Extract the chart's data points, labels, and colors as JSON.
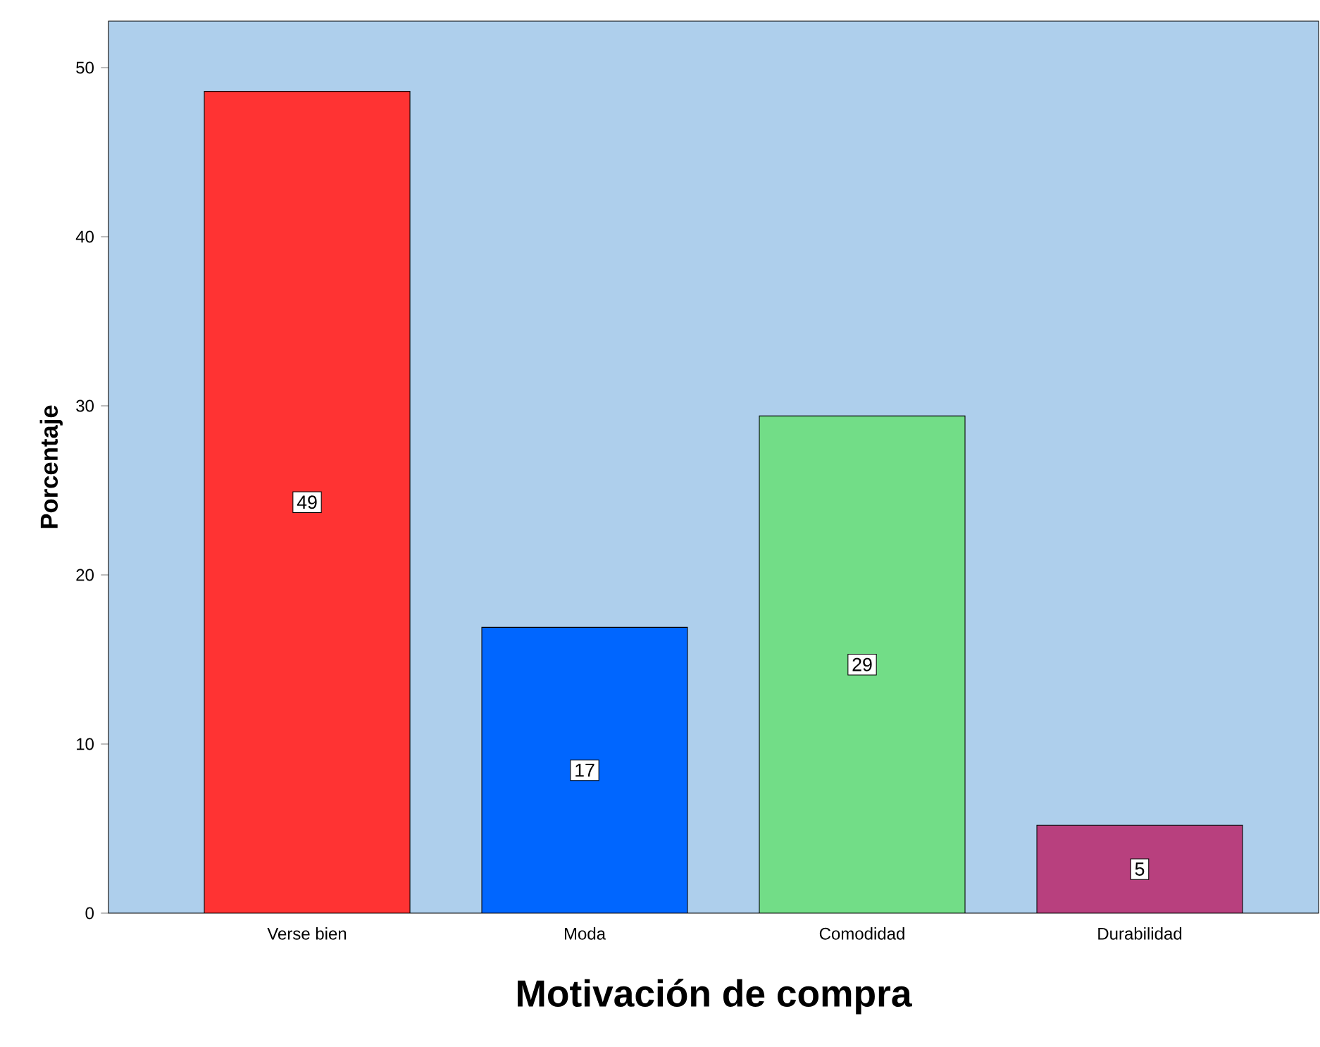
{
  "chart_data": {
    "type": "bar",
    "xlabel": "Motivación de compra",
    "ylabel": "Porcentaje",
    "categories": [
      "Verse bien",
      "Moda",
      "Comodidad",
      "Durabilidad"
    ],
    "values": [
      48.6,
      16.9,
      29.4,
      5.2
    ],
    "value_labels": [
      "49",
      "17",
      "29",
      "5"
    ],
    "colors": [
      "#ff3333",
      "#0066ff",
      "#72dd87",
      "#b8407e"
    ],
    "ylim": [
      0,
      52.75
    ],
    "yticks": [
      0,
      10,
      20,
      30,
      40,
      50
    ]
  }
}
